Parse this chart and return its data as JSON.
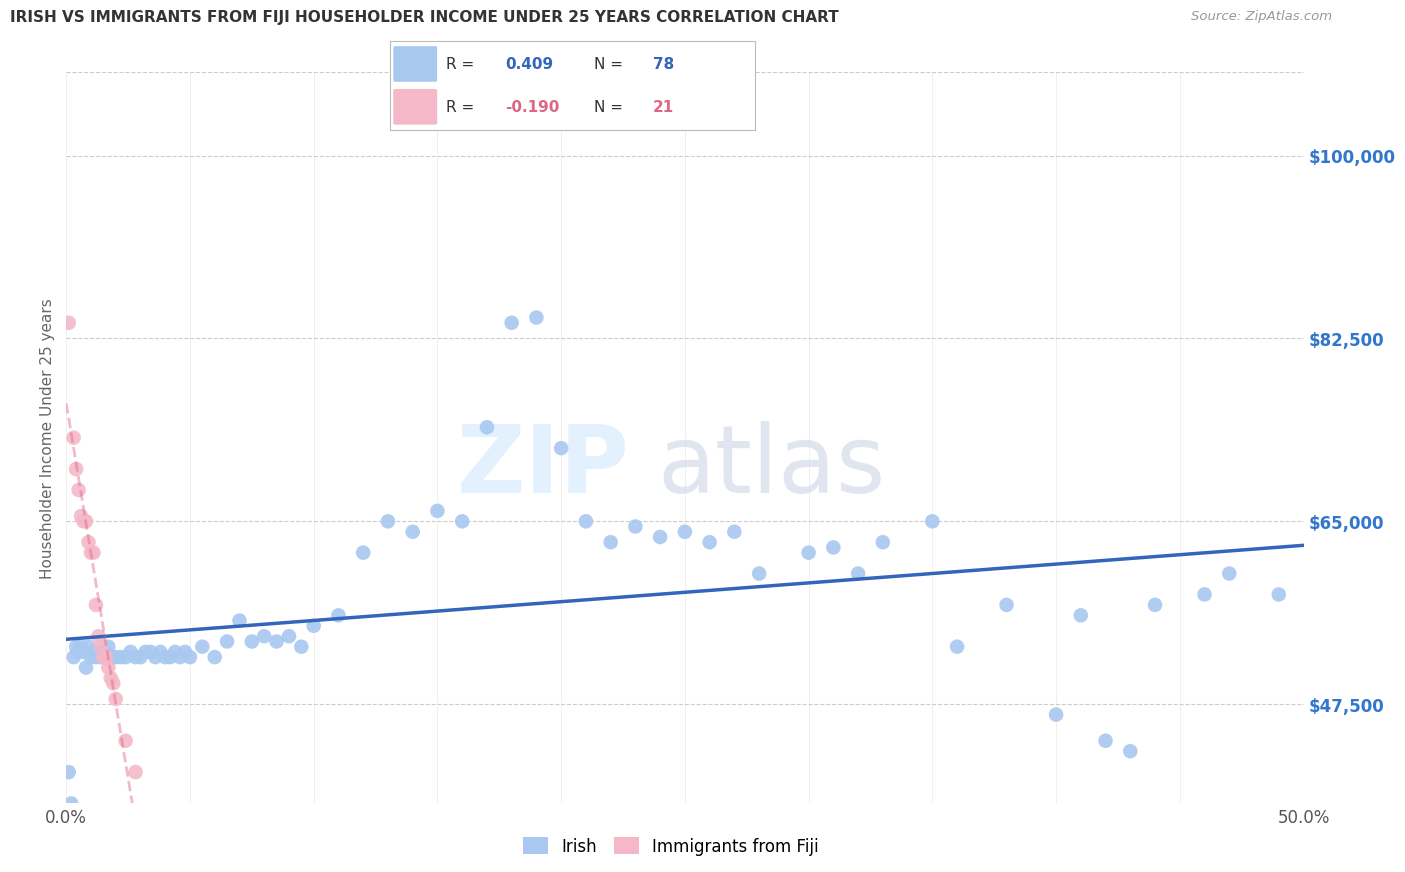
{
  "title": "IRISH VS IMMIGRANTS FROM FIJI HOUSEHOLDER INCOME UNDER 25 YEARS CORRELATION CHART",
  "source": "Source: ZipAtlas.com",
  "ylabel": "Householder Income Under 25 years",
  "y_tick_labels": [
    "$47,500",
    "$65,000",
    "$82,500",
    "$100,000"
  ],
  "y_tick_values": [
    47500,
    65000,
    82500,
    100000
  ],
  "xlim": [
    0.0,
    0.5
  ],
  "ylim": [
    38000,
    108000
  ],
  "irish_color": "#a8c8f0",
  "fiji_color": "#f4b8c8",
  "irish_line_color": "#3366bb",
  "fiji_line_color": "#dd6688",
  "background_color": "#ffffff",
  "grid_color": "#cccccc",
  "irish_x": [
    0.001,
    0.002,
    0.003,
    0.004,
    0.005,
    0.006,
    0.007,
    0.008,
    0.009,
    0.01,
    0.011,
    0.012,
    0.013,
    0.014,
    0.015,
    0.016,
    0.017,
    0.018,
    0.019,
    0.02,
    0.022,
    0.024,
    0.026,
    0.028,
    0.03,
    0.032,
    0.034,
    0.036,
    0.038,
    0.04,
    0.042,
    0.044,
    0.046,
    0.048,
    0.05,
    0.055,
    0.06,
    0.065,
    0.07,
    0.075,
    0.08,
    0.085,
    0.09,
    0.095,
    0.1,
    0.11,
    0.12,
    0.13,
    0.14,
    0.15,
    0.16,
    0.17,
    0.18,
    0.19,
    0.2,
    0.21,
    0.22,
    0.23,
    0.24,
    0.25,
    0.26,
    0.27,
    0.28,
    0.3,
    0.31,
    0.32,
    0.33,
    0.35,
    0.36,
    0.38,
    0.4,
    0.41,
    0.42,
    0.43,
    0.44,
    0.46,
    0.47,
    0.49
  ],
  "irish_y": [
    41000,
    38000,
    52000,
    53000,
    52500,
    53000,
    52500,
    51000,
    53000,
    52000,
    52500,
    52000,
    52500,
    52000,
    52500,
    52500,
    53000,
    52000,
    52000,
    52000,
    52000,
    52000,
    52500,
    52000,
    52000,
    52500,
    52500,
    52000,
    52500,
    52000,
    52000,
    52500,
    52000,
    52500,
    52000,
    53000,
    52000,
    53500,
    55500,
    53500,
    54000,
    53500,
    54000,
    53000,
    55000,
    56000,
    62000,
    65000,
    64000,
    66000,
    65000,
    74000,
    84000,
    84500,
    72000,
    65000,
    63000,
    64500,
    63500,
    64000,
    63000,
    64000,
    60000,
    62000,
    62500,
    60000,
    63000,
    65000,
    53000,
    57000,
    46500,
    56000,
    44000,
    43000,
    57000,
    58000,
    60000,
    58000
  ],
  "fiji_x": [
    0.001,
    0.003,
    0.004,
    0.005,
    0.006,
    0.007,
    0.008,
    0.009,
    0.01,
    0.011,
    0.012,
    0.013,
    0.014,
    0.015,
    0.016,
    0.017,
    0.018,
    0.019,
    0.02,
    0.024,
    0.028
  ],
  "fiji_y": [
    84000,
    73000,
    70000,
    68000,
    65500,
    65000,
    65000,
    63000,
    62000,
    62000,
    57000,
    54000,
    53000,
    52000,
    52000,
    51000,
    50000,
    49500,
    48000,
    44000,
    41000
  ]
}
